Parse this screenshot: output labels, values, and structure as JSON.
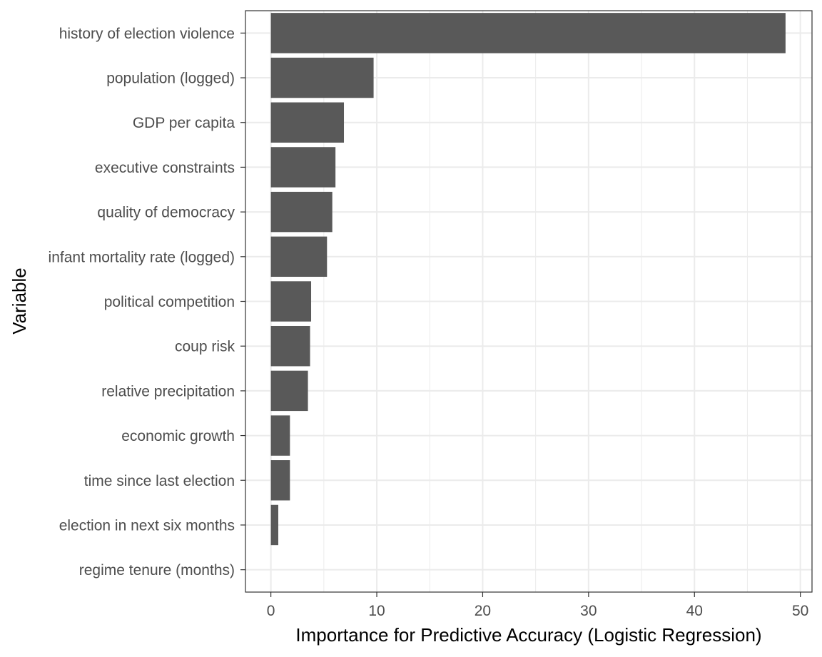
{
  "chart_data": {
    "type": "bar",
    "orientation": "horizontal",
    "categories": [
      "history of election violence",
      "population (logged)",
      "GDP per capita",
      "executive constraints",
      "quality of democracy",
      "infant mortality rate (logged)",
      "political competition",
      "coup risk",
      "relative precipitation",
      "economic growth",
      "time since last election",
      "election in next six months",
      "regime tenure (months)"
    ],
    "values": [
      48.6,
      9.7,
      6.9,
      6.1,
      5.8,
      5.3,
      3.8,
      3.7,
      3.5,
      1.8,
      1.8,
      0.7,
      0.0
    ],
    "xlabel": "Importance for Predictive Accuracy (Logistic Regression)",
    "ylabel": "Variable",
    "xlim": [
      -2.4,
      51.1
    ],
    "xticks": [
      0,
      10,
      20,
      30,
      40,
      50
    ],
    "grid": true,
    "legend": "none",
    "bar_color": "#595959",
    "grid_color": "#ebebeb",
    "border_color": "#333333"
  }
}
